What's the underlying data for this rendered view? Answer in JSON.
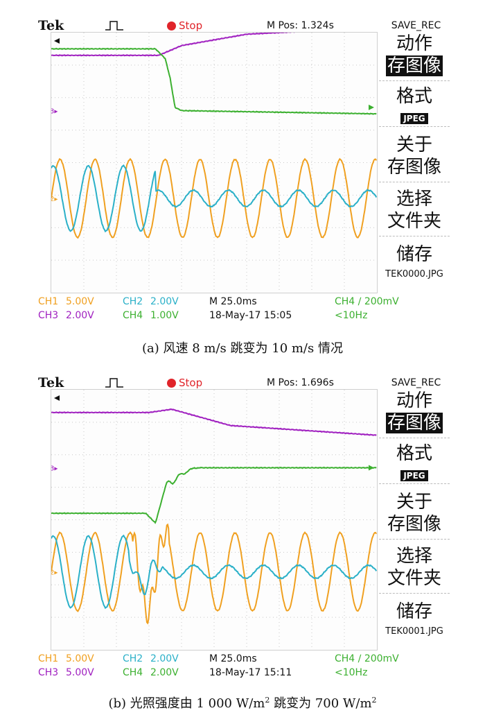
{
  "colors": {
    "ch1": "#f0a020",
    "ch2": "#2ab0c8",
    "ch3": "#a020c0",
    "ch4": "#3cb030",
    "stop": "#e0242a"
  },
  "panels": [
    {
      "brand": "Tek",
      "state": "Stop",
      "mpos": "M Pos: 1.324s",
      "menu": {
        "title": "SAVE_REC",
        "action": "动作",
        "save_image": "存图像",
        "format": "格式",
        "jpeg": "JPEG",
        "about1": "关于",
        "about2": "存图像",
        "select1": "选择",
        "select2": "文件夹",
        "store": "储存",
        "filename": "TEK0000.JPG"
      },
      "status": {
        "ch1": "CH1",
        "ch1_scale": "5.00V",
        "ch2": "CH2",
        "ch2_scale": "2.00V",
        "ch3": "CH3",
        "ch3_scale": "2.00V",
        "ch4": "CH4",
        "ch4_scale": "1.00V",
        "timebase": "M 25.0ms",
        "datetime": "18-May-17 15:05",
        "trigger": "CH4 ∕ 200mV",
        "freq": "<10Hz"
      },
      "caption": "(a)  风速 8 m/s 跳变为 10 m/s 情况",
      "markers": {
        "ch3": "3",
        "ch2": "2"
      }
    },
    {
      "brand": "Tek",
      "state": "Stop",
      "mpos": "M Pos: 1.696s",
      "menu": {
        "title": "SAVE_REC",
        "action": "动作",
        "save_image": "存图像",
        "format": "格式",
        "jpeg": "JPEG",
        "about1": "关于",
        "about2": "存图像",
        "select1": "选择",
        "select2": "文件夹",
        "store": "储存",
        "filename": "TEK0001.JPG"
      },
      "status": {
        "ch1": "CH1",
        "ch1_scale": "5.00V",
        "ch2": "CH2",
        "ch2_scale": "2.00V",
        "ch3": "CH3",
        "ch3_scale": "5.00V",
        "ch4": "CH4",
        "ch4_scale": "2.00V",
        "timebase": "M 25.0ms",
        "datetime": "18-May-17 15:11",
        "trigger": "CH4 ∕ 200mV",
        "freq": "<10Hz"
      },
      "caption_pre": "(b)  光照强度由 1 000 W/m",
      "caption_mid": " 跳变为 700 W/m",
      "caption_sup": "2",
      "markers": {
        "ch3": "3",
        "ch2": "2"
      }
    }
  ],
  "chart_data": [
    {
      "type": "line",
      "x_unit": "div",
      "y_unit": "div",
      "xlim": [
        0,
        10
      ],
      "ylim": [
        -4,
        4
      ],
      "grid": true,
      "series": [
        {
          "channel": "CH3",
          "x": [
            0,
            3.3,
            4.0,
            6.0,
            10
          ],
          "y": [
            3.3,
            3.3,
            3.6,
            3.95,
            4.15
          ]
        },
        {
          "channel": "CH4",
          "x": [
            0,
            3.2,
            3.5,
            3.65,
            3.8,
            4.0,
            10
          ],
          "y": [
            3.5,
            3.5,
            3.2,
            2.6,
            1.7,
            1.6,
            1.5
          ]
        },
        {
          "channel": "CH1",
          "note": "sinusoid",
          "cycles": 9.3,
          "amplitude_div": 1.2,
          "center_div": -1.1
        },
        {
          "channel": "CH2",
          "note": "sinusoid, amplitude falls after step",
          "cycles": 9.3,
          "amplitude_before": 1.0,
          "amplitude_after": 0.25,
          "step_x": 3.2,
          "center_div": -1.1
        }
      ]
    },
    {
      "type": "line",
      "x_unit": "div",
      "y_unit": "div",
      "xlim": [
        0,
        10
      ],
      "ylim": [
        -4,
        4
      ],
      "grid": true,
      "series": [
        {
          "channel": "CH3",
          "x": [
            0,
            3.0,
            3.7,
            5.5,
            10
          ],
          "y": [
            3.3,
            3.3,
            3.4,
            2.9,
            2.6
          ]
        },
        {
          "channel": "CH4",
          "x": [
            0,
            2.9,
            3.2,
            3.5,
            4.0,
            4.4,
            10
          ],
          "y": [
            0.2,
            0.2,
            -0.1,
            1.0,
            1.4,
            1.6,
            1.6
          ]
        },
        {
          "channel": "CH1",
          "note": "sinusoid",
          "cycles": 9.3,
          "amplitude_div": 1.2,
          "center_div": -1.6
        },
        {
          "channel": "CH2",
          "note": "sinusoid, amplitude falls after step",
          "cycles": 9.3,
          "amplitude_before": 1.1,
          "amplitude_after": 0.2,
          "step_x": 3.3,
          "center_div": -1.6
        }
      ]
    }
  ]
}
